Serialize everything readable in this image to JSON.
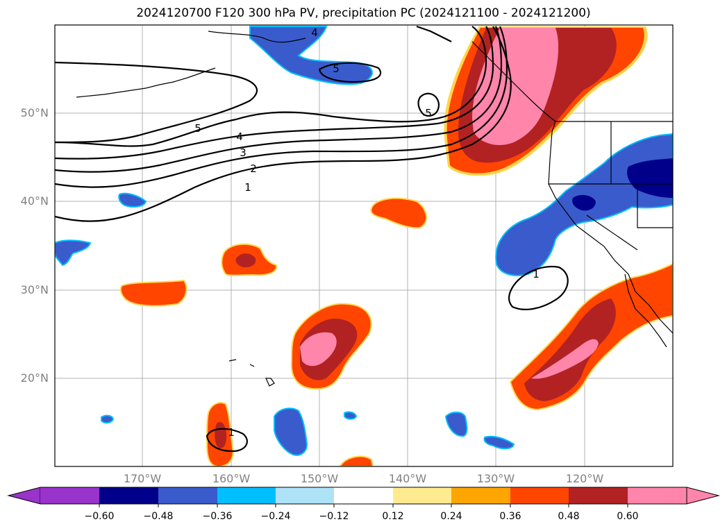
{
  "title": "2024120700 F120 300 hPa PV, precipitation PC (2024121100 - 2024121200)",
  "map": {
    "lat_labels": [
      "50°N",
      "40°N",
      "30°N",
      "20°N"
    ],
    "lon_labels": [
      "170°W",
      "160°W",
      "150°W",
      "140°W",
      "130°W",
      "120°W"
    ],
    "contour_labels": [
      "1",
      "2",
      "3",
      "4",
      "5",
      "5",
      "4",
      "5",
      "1",
      "1"
    ]
  },
  "colorbar": {
    "ticks": [
      "−0.60",
      "−0.48",
      "−0.36",
      "−0.24",
      "−0.12",
      "0.12",
      "0.24",
      "0.36",
      "0.48",
      "0.60"
    ],
    "colors": [
      "#9933cc",
      "#00008b",
      "#3a5bcc",
      "#00bfff",
      "#aee3f7",
      "#ffffff",
      "#ffea8f",
      "#ffa500",
      "#ff4500",
      "#b22222",
      "#ff85aa"
    ]
  }
}
